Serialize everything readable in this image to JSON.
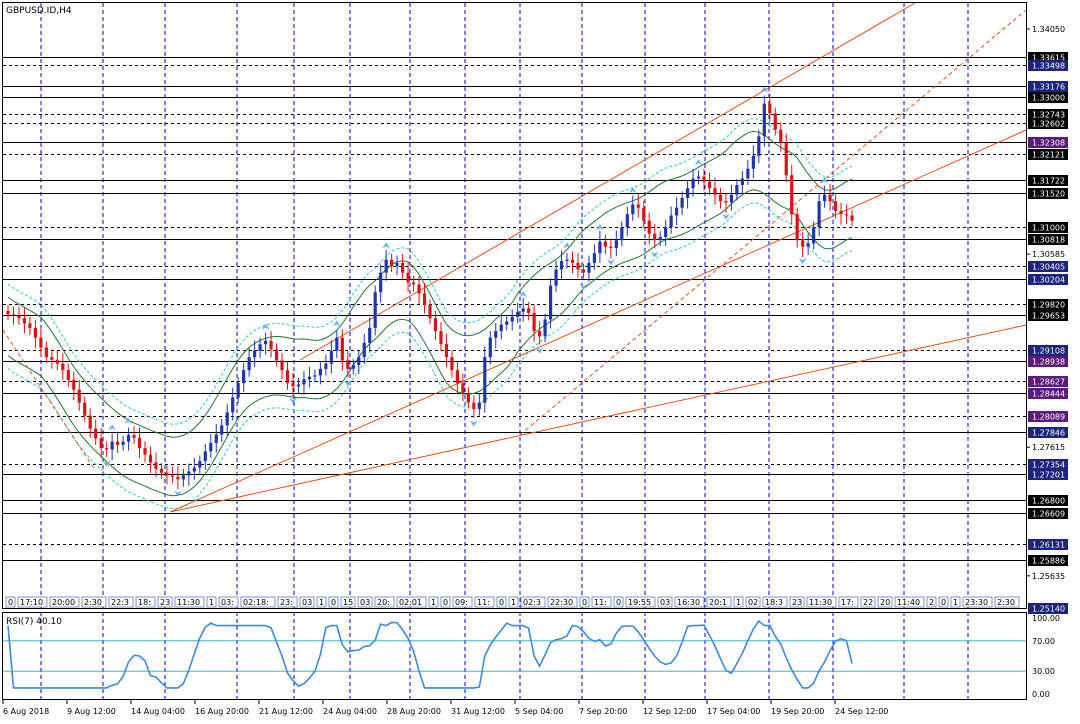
{
  "window_title": "GBPUSD.ID,H4",
  "rsi_label": "RSI(7) 40.10",
  "colors": {
    "grid": "#0000cc",
    "bull_candle": "#1f35ad",
    "bear_candle": "#e01010",
    "channel": "#e8531a",
    "bollinger": "#1f7a2e",
    "envelope": "#29d1b2",
    "rsi_line": "#3a8be0",
    "fractal": "#66b3ff",
    "tag_blue": "#1a237e",
    "tag_black": "#000000",
    "tag_purple": "#5c1a7a",
    "tag_red": "#c62828"
  },
  "price_scale": {
    "plain_ticks": [
      "1.34050",
      "1.30585",
      "1.27615",
      "1.25635"
    ],
    "levels": [
      {
        "price": 1.33615,
        "label": "1.33615",
        "tag": "tag_black",
        "line": "solid"
      },
      {
        "price": 1.33498,
        "label": "1.33498",
        "tag": "tag_blue",
        "line": "dash"
      },
      {
        "price": 1.33176,
        "label": "1.33176",
        "tag": "tag_blue",
        "line": "solid"
      },
      {
        "price": 1.33,
        "label": "1.33000",
        "tag": "tag_black",
        "line": "solid"
      },
      {
        "price": 1.32743,
        "label": "1.32743",
        "tag": "tag_black",
        "line": "dash"
      },
      {
        "price": 1.32602,
        "label": "1.32602",
        "tag": "tag_black",
        "line": "dash"
      },
      {
        "price": 1.32308,
        "label": "1.32308",
        "tag": "tag_purple",
        "line": "solid"
      },
      {
        "price": 1.32121,
        "label": "1.32121",
        "tag": "tag_black",
        "line": "dash"
      },
      {
        "price": 1.31722,
        "label": "1.31722",
        "tag": "tag_black",
        "line": "solid"
      },
      {
        "price": 1.3152,
        "label": "1.31520",
        "tag": "tag_black",
        "line": "solid"
      },
      {
        "price": 1.31,
        "label": "1.31000",
        "tag": "tag_black",
        "line": "dash"
      },
      {
        "price": 1.30818,
        "label": "1.30818",
        "tag": "tag_black",
        "line": "solid"
      },
      {
        "price": 1.30405,
        "label": "1.30405",
        "tag": "tag_blue",
        "line": "dash"
      },
      {
        "price": 1.30204,
        "label": "1.30204",
        "tag": "tag_blue",
        "line": "solid"
      },
      {
        "price": 1.2982,
        "label": "1.29820",
        "tag": "tag_black",
        "line": "dash"
      },
      {
        "price": 1.29653,
        "label": "1.29653",
        "tag": "tag_black",
        "line": "solid"
      },
      {
        "price": 1.29108,
        "label": "1.29108",
        "tag": "tag_blue",
        "line": "dash"
      },
      {
        "price": 1.28938,
        "label": "1.28938",
        "tag": "tag_purple",
        "line": "solid"
      },
      {
        "price": 1.28627,
        "label": "1.28627",
        "tag": "tag_purple",
        "line": "dash"
      },
      {
        "price": 1.28444,
        "label": "1.28444",
        "tag": "tag_purple",
        "line": "solid"
      },
      {
        "price": 1.28089,
        "label": "1.28089",
        "tag": "tag_purple",
        "line": "dash"
      },
      {
        "price": 1.27846,
        "label": "1.27846",
        "tag": "tag_blue",
        "line": "solid"
      },
      {
        "price": 1.27354,
        "label": "1.27354",
        "tag": "tag_blue",
        "line": "dash"
      },
      {
        "price": 1.27201,
        "label": "1.27201",
        "tag": "tag_blue",
        "line": "solid"
      },
      {
        "price": 1.268,
        "label": "1.26800",
        "tag": "tag_black",
        "line": "solid"
      },
      {
        "price": 1.26609,
        "label": "1.26609",
        "tag": "tag_black",
        "line": "solid"
      },
      {
        "price": 1.26131,
        "label": "1.26131",
        "tag": "tag_blue",
        "line": "dash"
      },
      {
        "price": 1.25886,
        "label": "1.25886",
        "tag": "tag_black",
        "line": "solid"
      },
      {
        "price": 1.2514,
        "label": "1.25140",
        "tag": "tag_blue",
        "line": "solid"
      }
    ]
  },
  "rsi_scale": [
    "100.00",
    "70.00",
    "30.00",
    "0.00"
  ],
  "time_axis": [
    "6 Aug 2018",
    "9 Aug 12:00",
    "14 Aug 04:00",
    "16 Aug 20:00",
    "21 Aug 12:00",
    "24 Aug 04:00",
    "28 Aug 20:00",
    "31 Aug 12:00",
    "5 Sep 04:00",
    "7 Sep 20:00",
    "12 Sep 12:00",
    "17 Sep 04:00",
    "19 Sep 20:00",
    "24 Sep 12:00"
  ],
  "session_labels": [
    "0",
    "17:10",
    "20:00",
    "2:30",
    "22:3",
    "18:",
    "23",
    "11:30",
    "1",
    "03:",
    "02:18:",
    "23:",
    "03",
    "1",
    "0",
    "15",
    "03",
    "20:",
    "02:01",
    "1",
    "0",
    "09:",
    "11:",
    "0",
    "1",
    "02:3",
    "22:30",
    "0",
    "11:",
    "0",
    "19:55",
    "03",
    "16:30",
    "20:1",
    "1",
    "02",
    "18:3",
    "23",
    "11:30",
    "17:",
    "22",
    "20",
    "11:40",
    "2",
    "0",
    "1",
    "23:30",
    "2:30"
  ],
  "chart_data": {
    "type": "candlestick",
    "title": "GBPUSD.ID,H4",
    "x_range": [
      "6 Aug 2018",
      "24 Sep 12:00"
    ],
    "y_range": [
      1.2514,
      1.3445
    ],
    "grid": true,
    "series": [
      {
        "name": "GBPUSD.ID",
        "ohlc_close": [
          1.2966,
          1.2964,
          1.296,
          1.2952,
          1.2945,
          1.293,
          1.2915,
          1.29,
          1.2896,
          1.289,
          1.288,
          1.2865,
          1.285,
          1.283,
          1.281,
          1.279,
          1.2775,
          1.276,
          1.2758,
          1.277,
          1.2765,
          1.277,
          1.278,
          1.2776,
          1.276,
          1.275,
          1.2738,
          1.2728,
          1.2722,
          1.2718,
          1.2716,
          1.2712,
          1.2718,
          1.2724,
          1.273,
          1.274,
          1.2755,
          1.2768,
          1.2781,
          1.2795,
          1.2815,
          1.2838,
          1.286,
          1.288,
          1.29,
          1.291,
          1.292,
          1.2925,
          1.2912,
          1.2895,
          1.288,
          1.286,
          1.2855,
          1.2858,
          1.2866,
          1.287,
          1.2872,
          1.2882,
          1.289,
          1.291,
          1.293,
          1.2895,
          1.2882,
          1.2888,
          1.29,
          1.2922,
          1.2945,
          1.3,
          1.303,
          1.305,
          1.304,
          1.3045,
          1.303,
          1.3015,
          1.3012,
          1.2998,
          1.298,
          1.296,
          1.294,
          1.292,
          1.29,
          1.288,
          1.286,
          1.2845,
          1.283,
          1.282,
          1.283,
          1.29,
          1.293,
          1.294,
          1.295,
          1.2955,
          1.2962,
          1.297,
          1.2975,
          1.2968,
          1.294,
          1.2932,
          1.2958,
          1.301,
          1.3035,
          1.3048,
          1.305,
          1.3045,
          1.3035,
          1.303,
          1.3045,
          1.306,
          1.3078,
          1.307,
          1.3068,
          1.308,
          1.31,
          1.312,
          1.3135,
          1.313,
          1.311,
          1.309,
          1.308,
          1.3085,
          1.31,
          1.3118,
          1.313,
          1.3145,
          1.316,
          1.3175,
          1.3178,
          1.317,
          1.316,
          1.315,
          1.314,
          1.3138,
          1.315,
          1.3165,
          1.3175,
          1.319,
          1.321,
          1.324,
          1.329,
          1.3275,
          1.325,
          1.323,
          1.318,
          1.312,
          1.308,
          1.307,
          1.3075,
          1.31,
          1.314,
          1.315,
          1.314,
          1.3125,
          1.312,
          1.3118,
          1.311
        ]
      },
      {
        "name": "RSI(7)",
        "last": 40.1
      }
    ],
    "annotations": [
      "RSI(7) 40.10"
    ]
  }
}
